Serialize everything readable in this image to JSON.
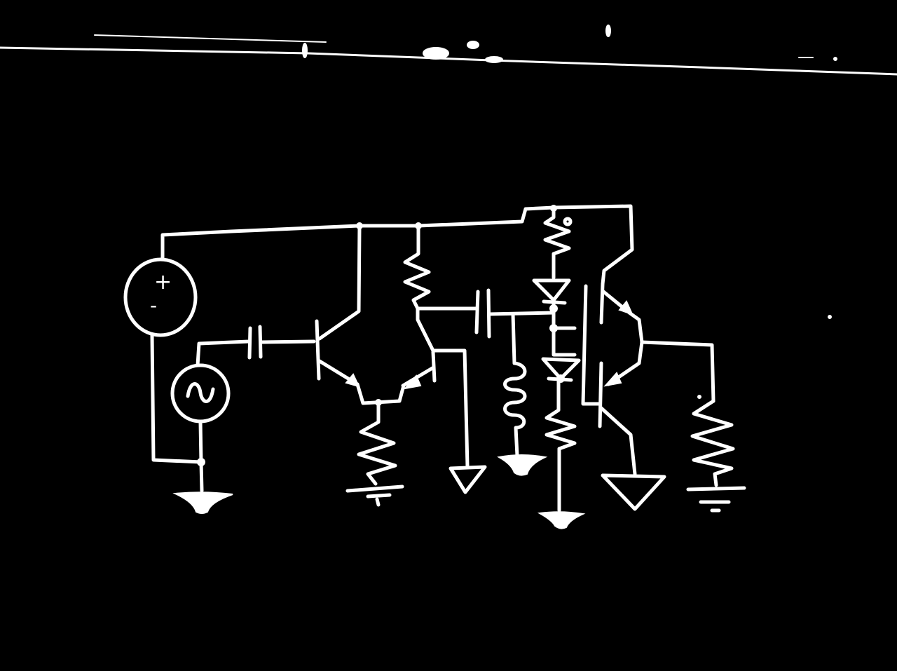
{
  "diagram": {
    "kind": "hand-drawn circuit schematic",
    "colors": {
      "background": "#000000",
      "ink": "#ffffff"
    },
    "symbols": {
      "dc_source_plus": "+",
      "dc_source_minus": "-",
      "ac_source": "~"
    },
    "components": [
      "dc-voltage-source",
      "ac-signal-source",
      "coupling-capacitor-1",
      "transistor-q1",
      "transistor-q2",
      "collector-resistor",
      "tail-resistor",
      "coupling-capacitor-2",
      "inductor",
      "bias-resistor-top",
      "diode-1",
      "diode-2",
      "bias-resistor-bottom",
      "output-npn-transistor",
      "output-pnp-transistor",
      "load-resistor",
      "ground-symbols"
    ]
  }
}
